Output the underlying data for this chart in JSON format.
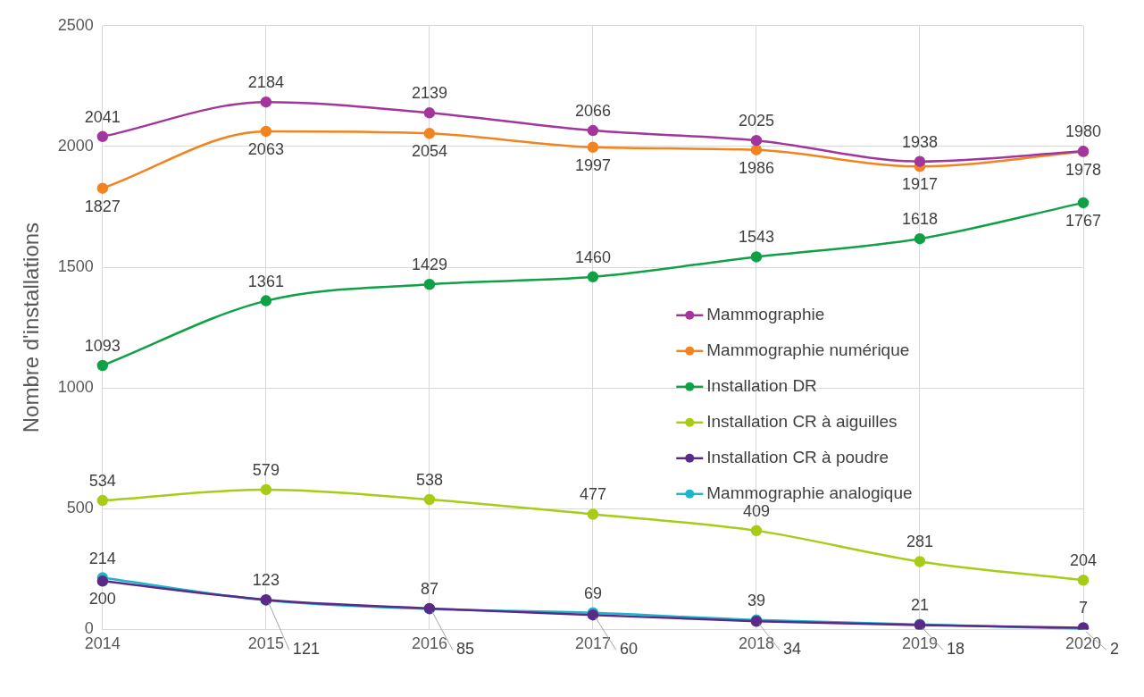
{
  "chart_data": {
    "type": "line",
    "ylabel": "Nombre d'installations",
    "categories": [
      "2014",
      "2015",
      "2016",
      "2017",
      "2018",
      "2019",
      "2020"
    ],
    "series": [
      {
        "name": "Mammographie",
        "color": "#a2369c",
        "values": [
          2041,
          2184,
          2139,
          2066,
          2025,
          1938,
          1980
        ]
      },
      {
        "name": "Mammographie numérique",
        "color": "#f28420",
        "values": [
          1827,
          2063,
          2054,
          1997,
          1986,
          1917,
          1978
        ]
      },
      {
        "name": "Installation DR",
        "color": "#10a045",
        "values": [
          1093,
          1361,
          1429,
          1460,
          1543,
          1618,
          1767
        ]
      },
      {
        "name": "Installation CR à aiguilles",
        "color": "#a6cc16",
        "values": [
          534,
          579,
          538,
          477,
          409,
          281,
          204
        ]
      },
      {
        "name": "Installation CR à poudre",
        "color": "#5b2a86",
        "values": [
          200,
          123,
          87,
          60,
          34,
          18,
          7
        ]
      },
      {
        "name": "Mammographie analogique",
        "color": "#1bb5cc",
        "values": [
          214,
          121,
          85,
          69,
          39,
          21,
          2
        ]
      }
    ],
    "ylim": [
      0,
      2500
    ],
    "yticks": [
      0,
      500,
      1000,
      1500,
      2000,
      2500
    ],
    "grid": true,
    "legend": "right",
    "marker": "circle",
    "line_style": "solid",
    "data_labels": true
  }
}
